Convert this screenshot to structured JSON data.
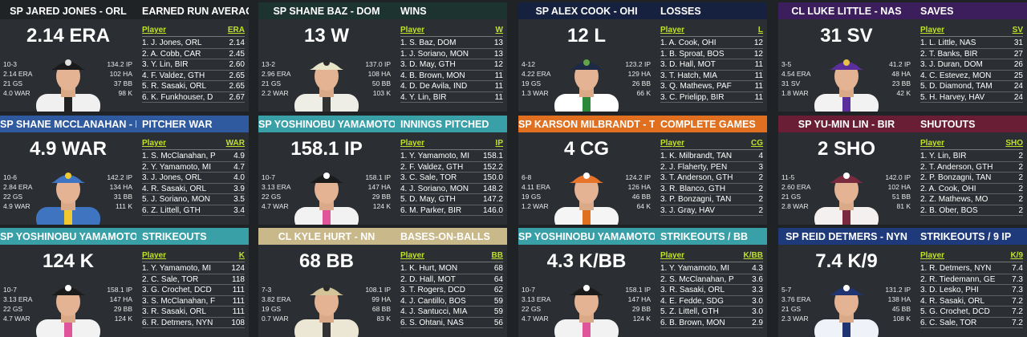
{
  "panels": [
    {
      "player": "SP JARED JONES - ORL",
      "stat_title": "EARNED RUN AVERAGE",
      "big": "2.14 ERA",
      "col_player": "Player",
      "col_stat": "ERA",
      "header_color": "#1f2326",
      "cap": "#1b1b1b",
      "logo": "#e0e0e0",
      "jersey": "#f0f0f0",
      "stripe": "#222",
      "left": [
        "10-3",
        "2.14 ERA",
        "21 GS",
        "4.0 WAR"
      ],
      "right": [
        "134.2 IP",
        "102 HA",
        "37 BB",
        "98 K"
      ],
      "rows": [
        [
          "1. J. Jones, ORL",
          "2.14"
        ],
        [
          "2. A. Cobb, CAR",
          "2.45"
        ],
        [
          "3. Y. Lin, BIR",
          "2.60"
        ],
        [
          "4. F. Valdez, GTH",
          "2.65"
        ],
        [
          "5. R. Sasaki, ORL",
          "2.65"
        ],
        [
          "6. K. Funkhouser, D",
          "2.67"
        ]
      ]
    },
    {
      "player": "SP SHANE BAZ - DOM",
      "stat_title": "WINS",
      "big": "13 W",
      "col_player": "Player",
      "col_stat": "W",
      "header_color": "#1c3330",
      "cap": "#e8e4c8",
      "logo": "#2a2a2a",
      "jersey": "#efeee6",
      "stripe": "#333",
      "left": [
        "13-2",
        "2.96 ERA",
        "21 GS",
        "2.2 WAR"
      ],
      "right": [
        "137.0 IP",
        "108 HA",
        "50 BB",
        "103 K"
      ],
      "rows": [
        [
          "1. S. Baz, DOM",
          "13"
        ],
        [
          "1. J. Soriano, MON",
          "13"
        ],
        [
          "3. D. May, GTH",
          "12"
        ],
        [
          "4. B. Brown, MON",
          "11"
        ],
        [
          "4. D. De Avila, IND",
          "11"
        ],
        [
          "4. Y. Lin, BIR",
          "11"
        ]
      ]
    },
    {
      "player": "SP ALEX COOK - OHI",
      "stat_title": "LOSSES",
      "big": "12 L",
      "col_player": "Player",
      "col_stat": "L",
      "header_color": "#16213f",
      "cap": "#1e2a45",
      "logo": "#5fa64a",
      "jersey": "#ffffff",
      "stripe": "#2a8a3a",
      "left": [
        "4-12",
        "4.22 ERA",
        "19 GS",
        "1.3 WAR"
      ],
      "right": [
        "123.2 IP",
        "129 HA",
        "26 BB",
        "66 K"
      ],
      "rows": [
        [
          "1. A. Cook, OHI",
          "12"
        ],
        [
          "1. B. Sproat, BOS",
          "12"
        ],
        [
          "3. D. Hall, MOT",
          "11"
        ],
        [
          "3. T. Hatch, MIA",
          "11"
        ],
        [
          "3. Q. Mathews, PAF",
          "11"
        ],
        [
          "3. C. Prielipp, BIR",
          "11"
        ]
      ]
    },
    {
      "player": "CL LUKE LITTLE - NAS",
      "stat_title": "SAVES",
      "big": "31 SV",
      "col_player": "Player",
      "col_stat": "SV",
      "header_color": "#3c1e5c",
      "cap": "#5a2f9c",
      "logo": "#e6c24a",
      "jersey": "#f2f2f2",
      "stripe": "#5a2f9c",
      "left": [
        "3-5",
        "4.54 ERA",
        "31 SV",
        "1.8 WAR"
      ],
      "right": [
        "41.2 IP",
        "48 HA",
        "23 BB",
        "42 K"
      ],
      "rows": [
        [
          "1. L. Little, NAS",
          "31"
        ],
        [
          "2. T. Banks, BIR",
          "27"
        ],
        [
          "3. J. Duran, DOM",
          "26"
        ],
        [
          "4. C. Estevez, MON",
          "25"
        ],
        [
          "5. D. Diamond, TAM",
          "24"
        ],
        [
          "5. H. Harvey, HAV",
          "24"
        ]
      ]
    },
    {
      "player": "SP SHANE MCCLANAHAN - PHI",
      "stat_title": "PITCHER WAR",
      "big": "4.9 WAR",
      "col_player": "Player",
      "col_stat": "WAR",
      "header_color": "#2f5aa0",
      "cap": "#3d74c4",
      "logo": "#f0c830",
      "jersey": "#3f74c0",
      "stripe": "#f0c830",
      "left": [
        "10-6",
        "2.84 ERA",
        "22 GS",
        "4.9 WAR"
      ],
      "right": [
        "142.2 IP",
        "134 HA",
        "31 BB",
        "111 K"
      ],
      "rows": [
        [
          "1. S. McClanahan, P",
          "4.9"
        ],
        [
          "2. Y. Yamamoto, MI",
          "4.7"
        ],
        [
          "3. J. Jones, ORL",
          "4.0"
        ],
        [
          "4. R. Sasaki, ORL",
          "3.9"
        ],
        [
          "5. J. Soriano, MON",
          "3.5"
        ],
        [
          "6. Z. Littell, GTH",
          "3.4"
        ]
      ]
    },
    {
      "player": "SP YOSHINOBU YAMAMOTO - M",
      "stat_title": "INNINGS PITCHED",
      "big": "158.1 IP",
      "col_player": "Player",
      "col_stat": "IP",
      "header_color": "#3aa0a8",
      "cap": "#1b1b1b",
      "logo": "#ffffff",
      "jersey": "#f2f2f2",
      "stripe": "#e0559a",
      "left": [
        "10-7",
        "3.13 ERA",
        "22 GS",
        "4.7 WAR"
      ],
      "right": [
        "158.1 IP",
        "147 HA",
        "29 BB",
        "124 K"
      ],
      "rows": [
        [
          "1. Y. Yamamoto, MI",
          "158.1"
        ],
        [
          "2. F. Valdez, GTH",
          "152.2"
        ],
        [
          "3. C. Sale, TOR",
          "150.0"
        ],
        [
          "4. J. Soriano, MON",
          "148.2"
        ],
        [
          "5. D. May, GTH",
          "147.2"
        ],
        [
          "6. M. Parker, BIR",
          "146.0"
        ]
      ]
    },
    {
      "player": "SP KARSON MILBRANDT - TAM",
      "stat_title": "COMPLETE GAMES",
      "big": "4 CG",
      "col_player": "Player",
      "col_stat": "CG",
      "header_color": "#e07020",
      "cap": "#e8742a",
      "logo": "#ffffff",
      "jersey": "#f5f5f5",
      "stripe": "#e07020",
      "left": [
        "6-8",
        "4.11 ERA",
        "19 GS",
        "1.2 WAR"
      ],
      "right": [
        "124.2 IP",
        "126 HA",
        "46 BB",
        "64 K"
      ],
      "rows": [
        [
          "1. K. Milbrandt, TAN",
          "4"
        ],
        [
          "2. J. Flaherty, PEN",
          "3"
        ],
        [
          "3. T. Anderson, GTH",
          "2"
        ],
        [
          "3. R. Blanco, GTH",
          "2"
        ],
        [
          "3. P. Bonzagni, TAN",
          "2"
        ],
        [
          "3. J. Gray, HAV",
          "2"
        ]
      ]
    },
    {
      "player": "SP YU-MIN LIN - BIR",
      "stat_title": "SHUTOUTS",
      "big": "2 SHO",
      "col_player": "Player",
      "col_stat": "SHO",
      "header_color": "#6a1e36",
      "cap": "#7a2a3e",
      "logo": "#ffffff",
      "jersey": "#f4f0f0",
      "stripe": "#7a2a3e",
      "left": [
        "11-5",
        "2.60 ERA",
        "21 GS",
        "2.8 WAR"
      ],
      "right": [
        "142.0 IP",
        "102 HA",
        "51 BB",
        "81 K"
      ],
      "rows": [
        [
          "1. Y. Lin, BIR",
          "2"
        ],
        [
          "2. T. Anderson, GTH",
          "2"
        ],
        [
          "2. P. Bonzagni, TAN",
          "2"
        ],
        [
          "2. A. Cook, OHI",
          "2"
        ],
        [
          "2. Z. Mathews, MO",
          "2"
        ],
        [
          "2. B. Ober, BOS",
          "2"
        ]
      ]
    },
    {
      "player": "SP YOSHINOBU YAMAMOTO - M",
      "stat_title": "STRIKEOUTS",
      "big": "124 K",
      "col_player": "Player",
      "col_stat": "K",
      "header_color": "#3aa0a8",
      "cap": "#1b1b1b",
      "logo": "#ffffff",
      "jersey": "#f2f2f2",
      "stripe": "#e0559a",
      "left": [
        "10-7",
        "3.13 ERA",
        "22 GS",
        "4.7 WAR"
      ],
      "right": [
        "158.1 IP",
        "147 HA",
        "29 BB",
        "124 K"
      ],
      "rows": [
        [
          "1. Y. Yamamoto, MI",
          "124"
        ],
        [
          "2. C. Sale, TOR",
          "118"
        ],
        [
          "3. G. Crochet, DCD",
          "111"
        ],
        [
          "3. S. McClanahan, F",
          "111"
        ],
        [
          "3. R. Sasaki, ORL",
          "111"
        ],
        [
          "6. R. Detmers, NYN",
          "108"
        ]
      ]
    },
    {
      "player": "CL KYLE HURT - NN",
      "stat_title": "BASES-ON-BALLS",
      "big": "68 BB",
      "col_player": "Player",
      "col_stat": "BB",
      "header_color": "#c8b88a",
      "cap": "#d4c49a",
      "logo": "#2a2a2a",
      "jersey": "#ece6d4",
      "stripe": "#333",
      "left": [
        "7-3",
        "3.82 ERA",
        "19 GS",
        "0.7 WAR"
      ],
      "right": [
        "108.1 IP",
        "99 HA",
        "68 BB",
        "83 K"
      ],
      "rows": [
        [
          "1. K. Hurt, MON",
          "68"
        ],
        [
          "2. D. Hall, MOT",
          "64"
        ],
        [
          "3. T. Rogers, DCD",
          "62"
        ],
        [
          "4. J. Cantillo, BOS",
          "59"
        ],
        [
          "4. J. Santucci, MIA",
          "59"
        ],
        [
          "6. S. Ohtani, NAS",
          "56"
        ]
      ]
    },
    {
      "player": "SP YOSHINOBU YAMAMOTO - M",
      "stat_title": "STRIKEOUTS / BB",
      "big": "4.3 K/BB",
      "col_player": "Player",
      "col_stat": "K/BB",
      "header_color": "#3aa0a8",
      "cap": "#1b1b1b",
      "logo": "#ffffff",
      "jersey": "#f2f2f2",
      "stripe": "#e0559a",
      "left": [
        "10-7",
        "3.13 ERA",
        "22 GS",
        "4.7 WAR"
      ],
      "right": [
        "158.1 IP",
        "147 HA",
        "29 BB",
        "124 K"
      ],
      "rows": [
        [
          "1. Y. Yamamoto, MI",
          "4.3"
        ],
        [
          "2. S. McClanahan, P",
          "3.6"
        ],
        [
          "3. R. Sasaki, ORL",
          "3.3"
        ],
        [
          "4. E. Fedde, SDG",
          "3.0"
        ],
        [
          "5. Z. Littell, GTH",
          "3.0"
        ],
        [
          "6. B. Brown, MON",
          "2.9"
        ]
      ]
    },
    {
      "player": "SP REID DETMERS - NYN",
      "stat_title": "STRIKEOUTS / 9 IP",
      "big": "7.4 K/9",
      "col_player": "Player",
      "col_stat": "K/9",
      "header_color": "#1e3a7a",
      "cap": "#1f3470",
      "logo": "#ffffff",
      "jersey": "#f0f2fa",
      "stripe": "#1f3470",
      "left": [
        "5-7",
        "3.76 ERA",
        "21 GS",
        "2.3 WAR"
      ],
      "right": [
        "131.2 IP",
        "138 HA",
        "45 BB",
        "108 K"
      ],
      "rows": [
        [
          "1. R. Detmers, NYN",
          "7.4"
        ],
        [
          "2. R. Tiedemann, GE",
          "7.3"
        ],
        [
          "3. D. Lesko, PHI",
          "7.3"
        ],
        [
          "4. R. Sasaki, ORL",
          "7.2"
        ],
        [
          "5. G. Crochet, DCD",
          "7.2"
        ],
        [
          "6. C. Sale, TOR",
          "7.2"
        ]
      ]
    }
  ]
}
